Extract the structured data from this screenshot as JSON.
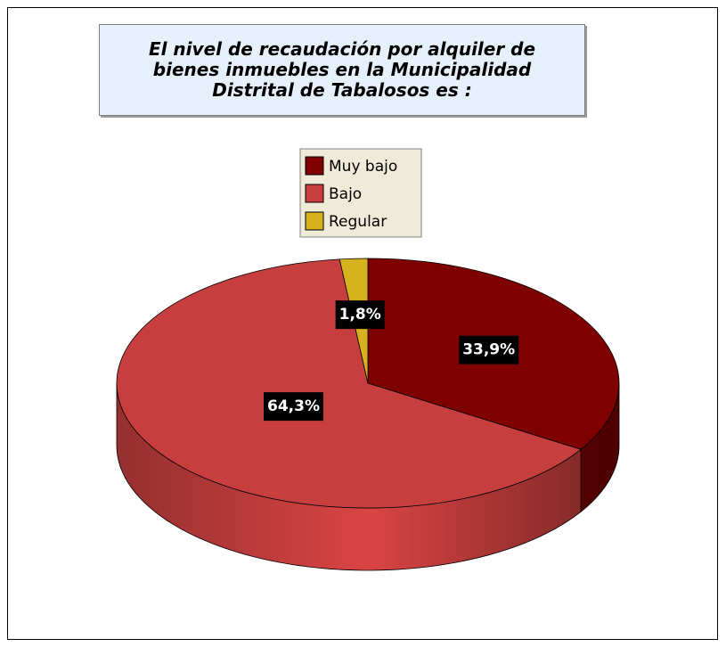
{
  "chart_data": {
    "type": "pie3d",
    "title": "El nivel de recaudación por alquiler de bienes inmuebles en la Municipalidad Distrital de Tabalosos es :",
    "categories": [
      "Muy bajo",
      "Bajo",
      "Regular"
    ],
    "values": [
      33.9,
      64.3,
      1.8
    ],
    "value_labels": [
      "33,9%",
      "64,3%",
      "1,8%"
    ],
    "colors": [
      "#7f0000",
      "#c63e3e",
      "#d6b21e"
    ],
    "legend": "top"
  }
}
